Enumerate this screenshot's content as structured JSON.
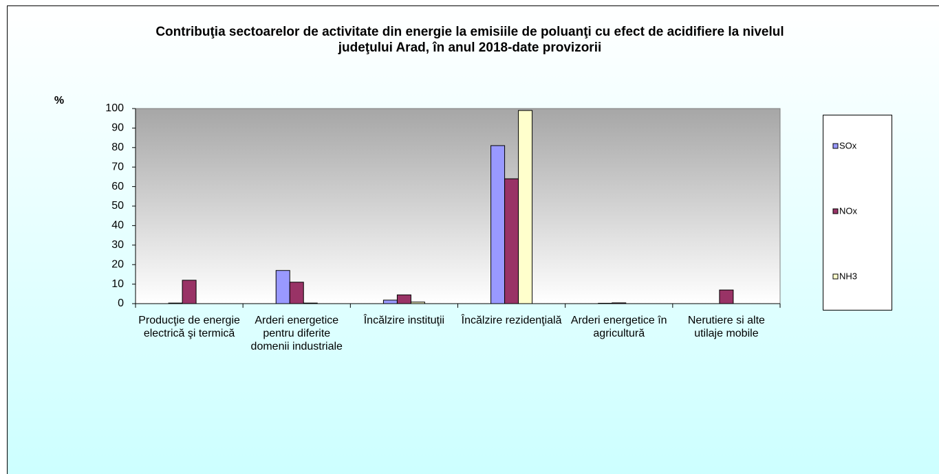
{
  "chart_data": {
    "type": "bar",
    "title": "Contribuţia sectoarelor de activitate din energie la emisiile de poluanţi cu efect de acidifiere la nivelul judeţului Arad, în anul 2018-date provizorii",
    "y_label": "%",
    "categories": [
      "Producţie de energie electrică şi termică",
      "Arderi energetice pentru diferite domenii industriale",
      "Încălzire instituţii",
      "Încălzire rezidenţială",
      "Arderi energetice în agricultură",
      "Nerutiere si alte utilaje mobile"
    ],
    "series": [
      {
        "name": "SOx",
        "color": "#9999ff",
        "values": [
          0.3,
          17,
          1.8,
          81,
          0.2,
          0
        ]
      },
      {
        "name": "NOx",
        "color": "#993366",
        "values": [
          12,
          11,
          4.5,
          64,
          0.4,
          7
        ]
      },
      {
        "name": "NH3",
        "color": "#ffffcc",
        "values": [
          0,
          0.3,
          0.8,
          99,
          0,
          0
        ]
      }
    ],
    "ylim": [
      0,
      100
    ],
    "yticks": [
      0,
      10,
      20,
      30,
      40,
      50,
      60,
      70,
      80,
      90,
      100
    ],
    "grid": false,
    "legend": "right"
  }
}
